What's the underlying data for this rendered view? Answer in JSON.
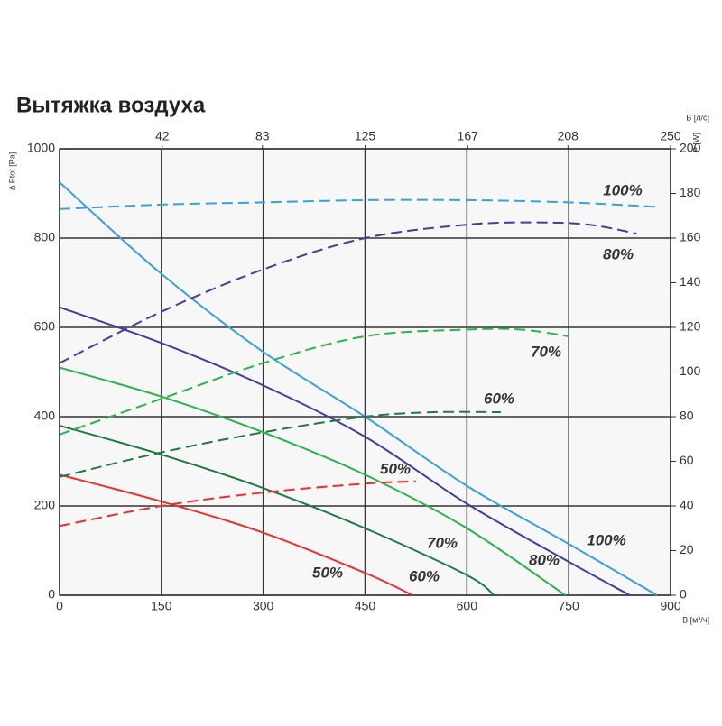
{
  "chart_data": {
    "type": "line",
    "title": "Вытяжка воздуха",
    "y_label": "Δ Ptot [Pa]",
    "y2_label": "P [W]",
    "x_label": "B [м³/ч]",
    "x2_label": "B [л/с]",
    "xlim": [
      0,
      900
    ],
    "xticks": [
      0,
      150,
      300,
      450,
      600,
      750,
      900
    ],
    "x2lim": [
      0,
      250
    ],
    "x2ticks": [
      42,
      83,
      125,
      167,
      208,
      250
    ],
    "ylim": [
      0,
      1000
    ],
    "yticks": [
      0,
      200,
      400,
      600,
      800,
      1000
    ],
    "y2lim": [
      0,
      200
    ],
    "y2ticks": [
      0,
      20,
      40,
      60,
      80,
      100,
      120,
      140,
      160,
      180,
      200
    ],
    "grid": true,
    "series": [
      {
        "name": "100%",
        "color": "#3aa0dc",
        "style": "solid",
        "x": [
          0,
          150,
          300,
          450,
          600,
          750,
          880
        ],
        "values": [
          925,
          720,
          545,
          400,
          245,
          115,
          0
        ]
      },
      {
        "name": "80%",
        "color": "#4b3a9a",
        "style": "solid",
        "x": [
          0,
          150,
          300,
          450,
          600,
          750,
          840
        ],
        "values": [
          645,
          565,
          470,
          355,
          205,
          75,
          0
        ]
      },
      {
        "name": "70%",
        "color": "#2ab34a",
        "style": "solid",
        "x": [
          0,
          150,
          300,
          450,
          600,
          745
        ],
        "values": [
          510,
          445,
          365,
          270,
          150,
          0
        ]
      },
      {
        "name": "60%",
        "color": "#1f7a43",
        "style": "solid",
        "x": [
          0,
          150,
          300,
          450,
          600,
          640
        ],
        "values": [
          380,
          315,
          240,
          150,
          45,
          0
        ]
      },
      {
        "name": "50%",
        "color": "#e8312f",
        "style": "solid",
        "x": [
          0,
          150,
          300,
          450,
          520
        ],
        "values": [
          270,
          210,
          140,
          50,
          0
        ]
      },
      {
        "name": "100%",
        "color": "#3aa0dc",
        "style": "dashed",
        "axis": "y2",
        "x": [
          0,
          150,
          300,
          450,
          600,
          750,
          880
        ],
        "values": [
          173,
          175,
          176,
          177,
          177,
          176,
          174
        ]
      },
      {
        "name": "80%",
        "color": "#4b3a9a",
        "style": "dashed",
        "axis": "y2",
        "x": [
          0,
          150,
          300,
          450,
          600,
          700,
          780,
          850
        ],
        "values": [
          104,
          127,
          146,
          160,
          166,
          167,
          166,
          162
        ]
      },
      {
        "name": "70%",
        "color": "#2ab34a",
        "style": "dashed",
        "axis": "y2",
        "x": [
          0,
          150,
          300,
          450,
          600,
          680,
          750
        ],
        "values": [
          72,
          88,
          104,
          116,
          119,
          119,
          116
        ]
      },
      {
        "name": "60%",
        "color": "#1f7a43",
        "style": "dashed",
        "axis": "y2",
        "x": [
          0,
          150,
          300,
          450,
          550,
          650
        ],
        "values": [
          53,
          64,
          73,
          80,
          82,
          82
        ]
      },
      {
        "name": "50%",
        "color": "#e8312f",
        "style": "dashed",
        "axis": "y2",
        "x": [
          0,
          150,
          300,
          450,
          525
        ],
        "values": [
          31,
          40,
          46,
          50,
          51
        ]
      }
    ]
  }
}
